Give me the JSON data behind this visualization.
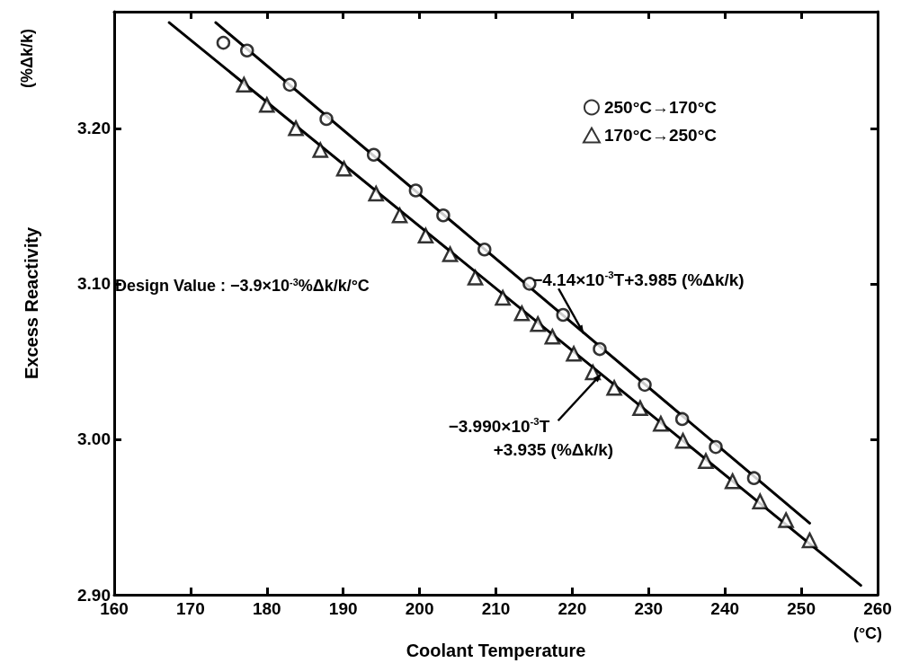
{
  "chart_data": {
    "type": "scatter",
    "xlabel": "Coolant Temperature",
    "ylabel": "Excess Reactivity",
    "xlim": [
      160,
      260
    ],
    "xticks": [
      160,
      170,
      180,
      190,
      200,
      210,
      220,
      230,
      240,
      250,
      260
    ],
    "ylim": [
      2.9,
      3.275
    ],
    "yticks": [
      {
        "value": 2.9,
        "label": "2.90"
      },
      {
        "value": 3.0,
        "label": "3.00"
      },
      {
        "value": 3.1,
        "label": "3.10"
      },
      {
        "value": 3.2,
        "label": "3.20"
      }
    ],
    "grid": false,
    "legend": "top right",
    "series": [
      {
        "name": "250°C→170°C",
        "color": "#000000",
        "marker": "circle",
        "x": [
          174.3,
          177.4,
          183.0,
          187.8,
          194.0,
          199.5,
          203.1,
          208.5,
          214.4,
          218.8,
          223.6,
          229.5,
          234.4,
          238.8,
          243.8
        ],
        "values": [
          3.255,
          3.25,
          3.228,
          3.206,
          3.183,
          3.16,
          3.144,
          3.122,
          3.1,
          3.08,
          3.058,
          3.035,
          3.013,
          2.995,
          2.975
        ]
      },
      {
        "name": "170°C→250°C",
        "color": "#000000",
        "marker": "triangle",
        "x": [
          177.0,
          180.0,
          183.8,
          187.0,
          190.1,
          194.3,
          197.4,
          200.8,
          204.0,
          207.3,
          210.9,
          213.4,
          215.5,
          217.4,
          220.2,
          222.7,
          225.5,
          228.9,
          231.6,
          234.5,
          237.5,
          241.0,
          244.6,
          248.0,
          251.1
        ],
        "values": [
          3.228,
          3.215,
          3.2,
          3.186,
          3.174,
          3.158,
          3.144,
          3.131,
          3.119,
          3.104,
          3.091,
          3.081,
          3.074,
          3.066,
          3.055,
          3.043,
          3.033,
          3.02,
          3.01,
          2.999,
          2.986,
          2.973,
          2.96,
          2.948,
          2.935
        ]
      },
      {
        "type": "line",
        "color": "#000000",
        "marker": "none",
        "line_style": "solid",
        "x": [
          173.3,
          251.1
        ],
        "values": [
          3.268,
          2.946
        ]
      },
      {
        "type": "line",
        "color": "#000000",
        "marker": "none",
        "line_style": "solid",
        "x": [
          167.2,
          257.8
        ],
        "values": [
          3.268,
          2.906
        ]
      }
    ],
    "annotations": [
      {
        "text": "−4.14×10$^{-3}$T+3.985 (%Δk/k)",
        "x": 221.5,
        "y": 3.068
      },
      {
        "text": "−3.990×10$^{-3}$T\n+3.935 (%Δk/k)",
        "x": 223.8,
        "y": 3.042
      },
      "Design Value : −3.9×10$^{-3}$%Δk/k/°C",
      "(%Δk/k)",
      "(°C)"
    ]
  }
}
